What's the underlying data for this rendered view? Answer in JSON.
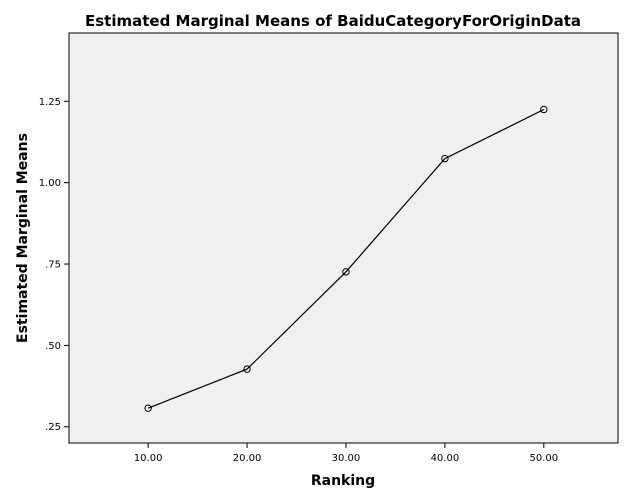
{
  "chart_data": {
    "type": "line",
    "title": "Estimated Marginal Means of BaiduCategoryForOriginData",
    "xlabel": "Ranking",
    "ylabel": "Estimated Marginal Means",
    "x": [
      "10.00",
      "20.00",
      "30.00",
      "40.00",
      "50.00"
    ],
    "x_values": [
      10,
      20,
      30,
      40,
      50
    ],
    "series": [
      {
        "values": [
          0.307,
          0.427,
          0.726,
          1.074,
          1.225
        ]
      }
    ],
    "y_ticks": [
      ".25",
      ".50",
      ".75",
      "1.00",
      "1.25"
    ],
    "y_tick_values": [
      0.25,
      0.5,
      0.75,
      1.0,
      1.25
    ],
    "ylim": [
      0.2,
      1.46
    ],
    "xlim": [
      2,
      57.5
    ],
    "grid": false,
    "legend": "none",
    "colors": {
      "background": "#f0f0f0",
      "line": "#000000"
    }
  }
}
